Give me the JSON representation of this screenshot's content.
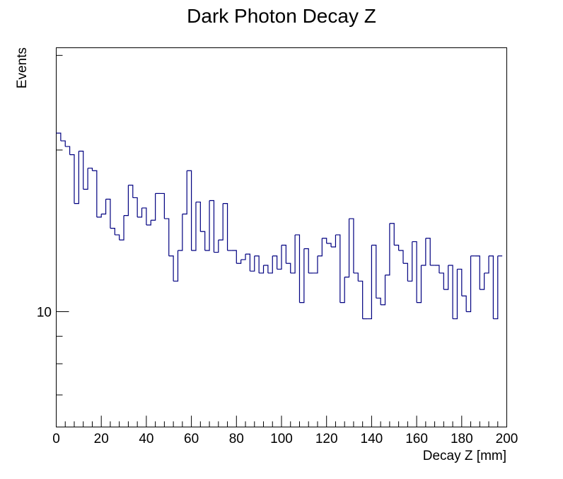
{
  "chart_data": {
    "type": "histogram",
    "title": "Dark Photon Decay Z",
    "xlabel": "Decay Z [mm]",
    "ylabel": "Events",
    "xlim": [
      0,
      200
    ],
    "ylim": [
      6.1,
      31
    ],
    "y_scale": "log",
    "x_ticks": [
      "0",
      "20",
      "40",
      "60",
      "80",
      "100",
      "120",
      "140",
      "160",
      "180",
      "200"
    ],
    "y_tick_labels": [
      {
        "value": 10,
        "label": "10"
      }
    ],
    "bin_width": 2,
    "line_color": "#000080",
    "series": [
      {
        "values": [
          21.5,
          20.8,
          20.3,
          19.6,
          15.9,
          19.9,
          16.9,
          18.5,
          18.3,
          15.0,
          15.2,
          16.2,
          14.3,
          13.9,
          13.6,
          15.1,
          17.2,
          16.3,
          15.0,
          15.6,
          14.5,
          14.8,
          16.6,
          16.6,
          14.9,
          12.7,
          11.4,
          13.0,
          15.2,
          18.3,
          13.0,
          16.0,
          14.1,
          13.0,
          16.1,
          12.9,
          13.6,
          15.9,
          13.0,
          13.0,
          12.3,
          12.5,
          12.8,
          11.9,
          12.7,
          11.8,
          12.2,
          11.8,
          12.7,
          12.0,
          13.3,
          12.3,
          11.8,
          13.9,
          10.4,
          13.1,
          11.8,
          11.8,
          12.7,
          13.7,
          13.4,
          13.2,
          13.9,
          10.4,
          11.6,
          14.9,
          11.8,
          11.4,
          9.7,
          9.7,
          13.3,
          10.6,
          10.3,
          11.7,
          14.6,
          13.3,
          13.0,
          12.3,
          11.4,
          13.5,
          10.4,
          12.2,
          13.7,
          12.2,
          12.2,
          11.8,
          11.0,
          12.2,
          9.7,
          12.0,
          10.7,
          10.0,
          12.7,
          12.7,
          11.0,
          11.8,
          12.7,
          9.7,
          12.7
        ]
      }
    ],
    "grid": false,
    "legend": "none"
  }
}
